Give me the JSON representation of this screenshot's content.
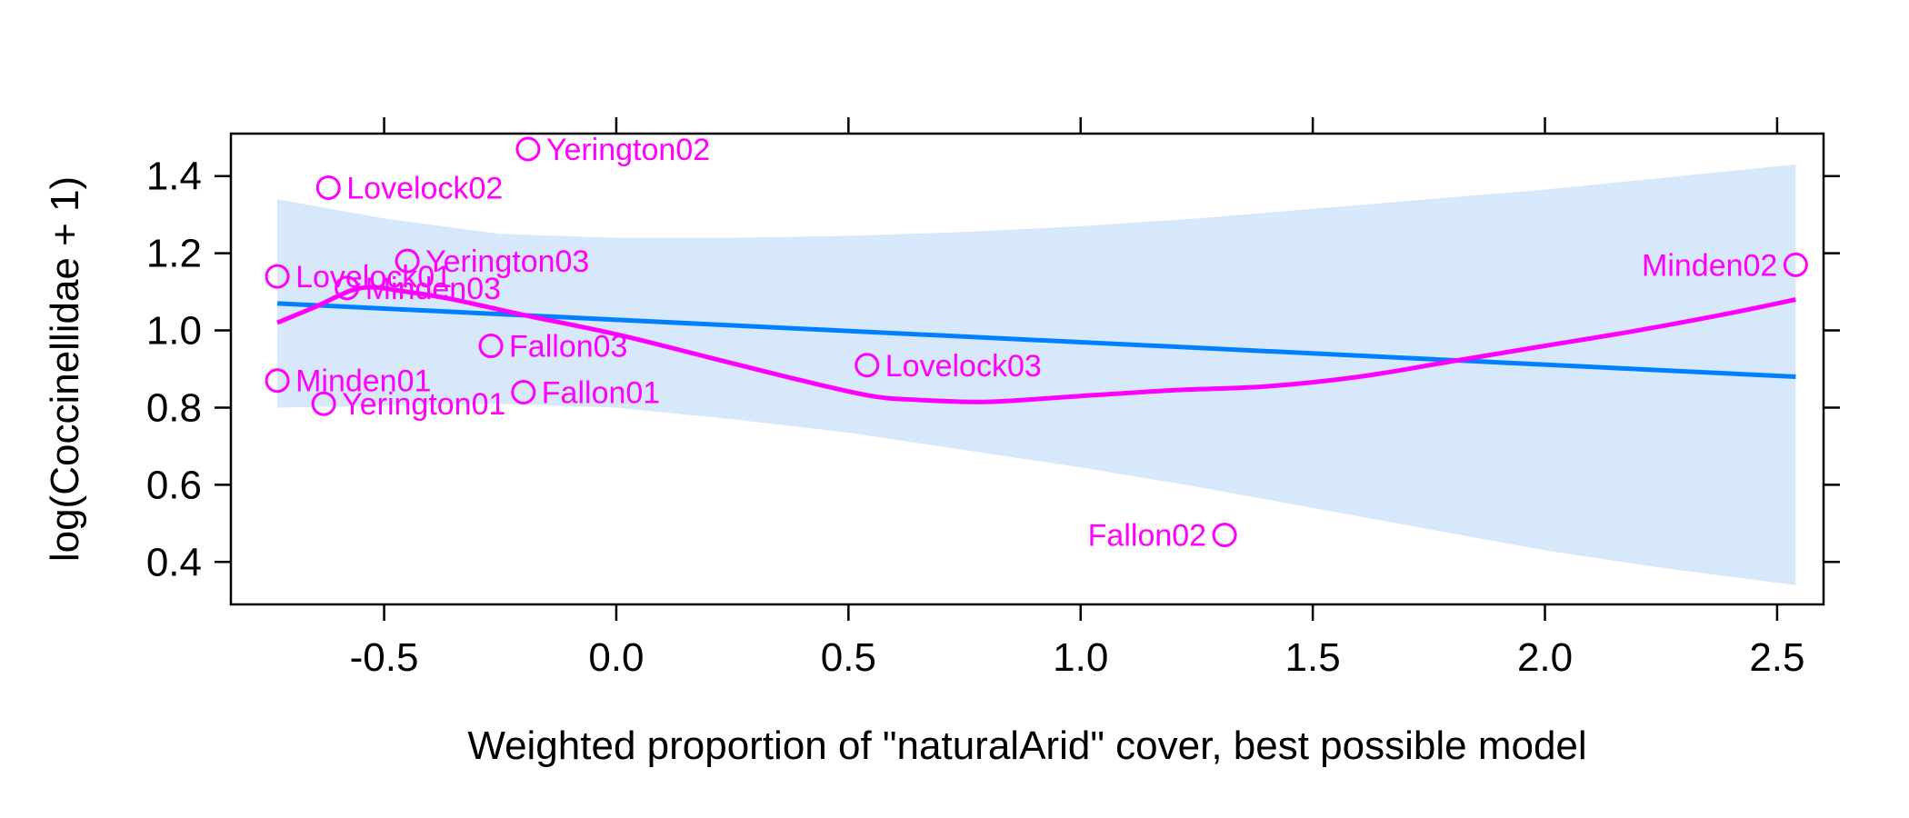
{
  "chart_data": {
    "type": "scatter",
    "xlabel": "Weighted proportion of \"naturalArid\" cover, best possible model",
    "ylabel": "log(Coccinellidae + 1)",
    "xlim": [
      -0.83,
      2.6
    ],
    "ylim": [
      0.29,
      1.51
    ],
    "x_ticks": [
      -0.5,
      0.0,
      0.5,
      1.0,
      1.5,
      2.0,
      2.5
    ],
    "x_tick_labels": [
      "-0.5",
      "0.0",
      "0.5",
      "1.0",
      "1.5",
      "2.0",
      "2.5"
    ],
    "y_ticks": [
      0.4,
      0.6,
      0.8,
      1.0,
      1.2,
      1.4
    ],
    "y_tick_labels": [
      "0.4",
      "0.6",
      "0.8",
      "1.0",
      "1.2",
      "1.4"
    ],
    "grid": false,
    "colors": {
      "points": "#ff00ff",
      "smooth": "#ff00ff",
      "fit": "#0080ff",
      "band": "#d6e8fa",
      "axis": "#000000"
    },
    "points": [
      {
        "label": "Yerington02",
        "x": -0.19,
        "y": 1.47,
        "side": "right"
      },
      {
        "label": "Lovelock02",
        "x": -0.62,
        "y": 1.37,
        "side": "right"
      },
      {
        "label": "Yerington03",
        "x": -0.45,
        "y": 1.18,
        "side": "right"
      },
      {
        "label": "Lovelock01",
        "x": -0.73,
        "y": 1.14,
        "side": "right"
      },
      {
        "label": "Minden03",
        "x": -0.58,
        "y": 1.11,
        "side": "right"
      },
      {
        "label": "Fallon03",
        "x": -0.27,
        "y": 0.96,
        "side": "right"
      },
      {
        "label": "Minden01",
        "x": -0.73,
        "y": 0.87,
        "side": "right"
      },
      {
        "label": "Yerington01",
        "x": -0.63,
        "y": 0.81,
        "side": "right"
      },
      {
        "label": "Fallon01",
        "x": -0.2,
        "y": 0.84,
        "side": "right"
      },
      {
        "label": "Lovelock03",
        "x": 0.54,
        "y": 0.91,
        "side": "right"
      },
      {
        "label": "Fallon02",
        "x": 1.31,
        "y": 0.47,
        "side": "left"
      },
      {
        "label": "Minden02",
        "x": 2.54,
        "y": 1.17,
        "side": "left"
      }
    ],
    "fit_line": {
      "x": [
        -0.73,
        2.54
      ],
      "y": [
        1.07,
        0.88
      ]
    },
    "confidence_band": {
      "x": [
        -0.73,
        -0.5,
        -0.25,
        0.0,
        0.25,
        0.5,
        0.75,
        1.0,
        1.25,
        1.5,
        1.75,
        2.0,
        2.25,
        2.54
      ],
      "upper": [
        1.34,
        1.29,
        1.25,
        1.24,
        1.24,
        1.245,
        1.255,
        1.27,
        1.29,
        1.315,
        1.34,
        1.365,
        1.395,
        1.43
      ],
      "lower": [
        0.8,
        0.805,
        0.81,
        0.8,
        0.77,
        0.735,
        0.69,
        0.645,
        0.595,
        0.54,
        0.485,
        0.43,
        0.385,
        0.34
      ]
    },
    "smooth_line": {
      "x": [
        -0.73,
        -0.65,
        -0.55,
        -0.45,
        -0.35,
        -0.2,
        0.0,
        0.2,
        0.4,
        0.55,
        0.65,
        0.8,
        1.0,
        1.2,
        1.4,
        1.6,
        1.8,
        2.0,
        2.2,
        2.4,
        2.54
      ],
      "y": [
        1.02,
        1.06,
        1.11,
        1.1,
        1.08,
        1.04,
        0.99,
        0.93,
        0.87,
        0.83,
        0.82,
        0.815,
        0.83,
        0.845,
        0.855,
        0.88,
        0.92,
        0.96,
        1.0,
        1.045,
        1.08
      ]
    }
  }
}
